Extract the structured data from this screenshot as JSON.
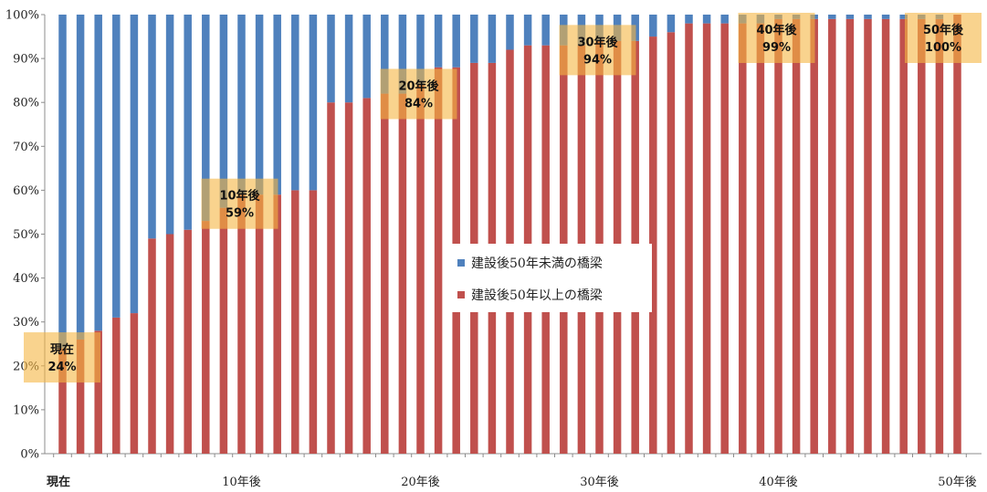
{
  "chart_data": {
    "type": "bar",
    "stacked": true,
    "percent_stacked": true,
    "ylim": [
      0,
      100
    ],
    "yticks": [
      "0%",
      "10%",
      "20%",
      "30%",
      "40%",
      "50%",
      "60%",
      "70%",
      "80%",
      "90%",
      "100%"
    ],
    "xtick_labels": [
      {
        "index": 0,
        "label": "現在",
        "bold": true
      },
      {
        "index": 10,
        "label": "10年後"
      },
      {
        "index": 20,
        "label": "20年後"
      },
      {
        "index": 30,
        "label": "30年後"
      },
      {
        "index": 40,
        "label": "40年後"
      },
      {
        "index": 50,
        "label": "50年後"
      }
    ],
    "series": [
      {
        "name": "建設後50年以上の橋梁",
        "color": "#c0504d",
        "values": [
          24,
          26,
          28,
          31,
          32,
          49,
          50,
          51,
          53,
          56,
          59,
          59,
          59,
          60,
          60,
          80,
          80,
          81,
          82,
          82,
          84,
          88,
          88,
          89,
          89,
          92,
          93,
          93,
          93,
          93,
          94,
          94,
          94,
          95,
          96,
          98,
          98,
          98,
          98,
          98,
          99,
          99,
          99,
          99,
          99,
          99,
          99,
          99,
          99,
          99,
          100
        ]
      },
      {
        "name": "建設後50年未満の橋梁",
        "color": "#4f81bd",
        "values": [
          76,
          74,
          72,
          69,
          68,
          51,
          50,
          49,
          47,
          44,
          41,
          41,
          41,
          40,
          40,
          20,
          20,
          19,
          18,
          18,
          16,
          12,
          12,
          11,
          11,
          8,
          7,
          7,
          7,
          7,
          6,
          6,
          6,
          5,
          4,
          2,
          2,
          2,
          2,
          2,
          1,
          1,
          1,
          1,
          1,
          1,
          1,
          1,
          1,
          1,
          0
        ]
      }
    ],
    "legend": {
      "placement": "center",
      "items": [
        "建設後50年未満の橋梁",
        "建設後50年以上の橋梁"
      ]
    },
    "annotations": [
      {
        "index": 0,
        "line1": "現在",
        "line2": "24%",
        "level": 24
      },
      {
        "index": 10,
        "line1": "10年後",
        "line2": "59%",
        "level": 59
      },
      {
        "index": 20,
        "line1": "20年後",
        "line2": "84%",
        "level": 84
      },
      {
        "index": 30,
        "line1": "30年後",
        "line2": "94%",
        "level": 94
      },
      {
        "index": 40,
        "line1": "40年後",
        "line2": "99%",
        "level": 99
      },
      {
        "index": 50,
        "line1": "50年後",
        "line2": "100%",
        "level": 100
      }
    ],
    "annotation_color": "#f5b642"
  }
}
